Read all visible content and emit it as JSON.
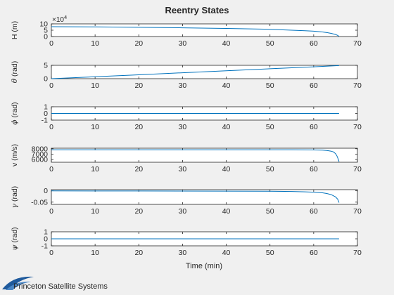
{
  "figure": {
    "title": "Reentry States",
    "xlabel": "Time (min)",
    "brand_text": "Princeton Satellite Systems"
  },
  "colors": {
    "background": "#f0f0f0",
    "axes_bg": "#ffffff",
    "line": "#0072bd",
    "axis": "#262626",
    "logo": "#1f5a9c"
  },
  "chart_data": [
    {
      "type": "line",
      "ylabel": "H (m)",
      "ylabel_symbol": "",
      "ylabel_rest": "H (m)",
      "exponent_label": "×10",
      "exponent_power": "4",
      "xlim": [
        0,
        70
      ],
      "ylim": [
        0,
        10
      ],
      "xticks": [
        "0",
        "10",
        "20",
        "30",
        "40",
        "50",
        "60",
        "70"
      ],
      "yticks": [
        {
          "v": 0,
          "t": "0"
        },
        {
          "v": 5,
          "t": "5"
        },
        {
          "v": 10,
          "t": "10"
        }
      ],
      "grid": false,
      "series": [
        {
          "x": [
            0,
            10,
            20,
            30,
            40,
            50,
            55,
            58,
            60,
            62,
            63,
            64,
            65,
            65.5,
            65.8
          ],
          "y": [
            7.8,
            7.6,
            7.3,
            6.9,
            6.4,
            5.7,
            5.0,
            4.6,
            4.2,
            3.6,
            3.1,
            2.5,
            1.6,
            0.9,
            0.1
          ]
        }
      ]
    },
    {
      "type": "line",
      "ylabel": "θ (rad)",
      "ylabel_symbol": "θ",
      "ylabel_rest": " (rad)",
      "xlim": [
        0,
        70
      ],
      "ylim": [
        0,
        5
      ],
      "xticks": [
        "0",
        "10",
        "20",
        "30",
        "40",
        "50",
        "60",
        "70"
      ],
      "yticks": [
        {
          "v": 0,
          "t": "0"
        },
        {
          "v": 5,
          "t": "5"
        }
      ],
      "grid": false,
      "series": [
        {
          "x": [
            0,
            10,
            20,
            30,
            40,
            50,
            60,
            65.8
          ],
          "y": [
            0,
            0.7,
            1.45,
            2.2,
            2.95,
            3.7,
            4.45,
            4.9
          ]
        }
      ]
    },
    {
      "type": "line",
      "ylabel": "ϕ (rad)",
      "ylabel_symbol": "ϕ",
      "ylabel_rest": " (rad)",
      "xlim": [
        0,
        70
      ],
      "ylim": [
        -1,
        1
      ],
      "xticks": [
        "0",
        "10",
        "20",
        "30",
        "40",
        "50",
        "60",
        "70"
      ],
      "yticks": [
        {
          "v": -1,
          "t": "-1"
        },
        {
          "v": 0,
          "t": "0"
        },
        {
          "v": 1,
          "t": "1"
        }
      ],
      "grid": false,
      "series": [
        {
          "x": [
            0,
            65.8
          ],
          "y": [
            0,
            0
          ]
        }
      ]
    },
    {
      "type": "line",
      "ylabel": "v (m/s)",
      "ylabel_symbol": "",
      "ylabel_rest": "v (m/s)",
      "xlim": [
        0,
        70
      ],
      "ylim": [
        5500,
        8100
      ],
      "xticks": [
        "0",
        "10",
        "20",
        "30",
        "40",
        "50",
        "60",
        "70"
      ],
      "yticks": [
        {
          "v": 6000,
          "t": "6000"
        },
        {
          "v": 7000,
          "t": "7000"
        },
        {
          "v": 8000,
          "t": "8000"
        }
      ],
      "grid": false,
      "series": [
        {
          "x": [
            0,
            20,
            40,
            55,
            60,
            62,
            63,
            64,
            64.5,
            65,
            65.3,
            65.6,
            65.8
          ],
          "y": [
            7800,
            7800,
            7798,
            7795,
            7780,
            7740,
            7680,
            7550,
            7420,
            7100,
            6700,
            6100,
            5600
          ]
        }
      ]
    },
    {
      "type": "line",
      "ylabel": "γ (rad)",
      "ylabel_symbol": "γ",
      "ylabel_rest": " (rad)",
      "xlim": [
        0,
        70
      ],
      "ylim": [
        -0.06,
        0.005
      ],
      "xticks": [
        "0",
        "10",
        "20",
        "30",
        "40",
        "50",
        "60",
        "70"
      ],
      "yticks": [
        {
          "v": -0.05,
          "t": "-0.05"
        },
        {
          "v": 0,
          "t": "0"
        }
      ],
      "grid": false,
      "series": [
        {
          "x": [
            0,
            20,
            40,
            50,
            55,
            58,
            60,
            62,
            63,
            64,
            65,
            65.5,
            65.8
          ],
          "y": [
            -0.0005,
            -0.001,
            -0.0015,
            -0.0022,
            -0.003,
            -0.0045,
            -0.006,
            -0.009,
            -0.012,
            -0.017,
            -0.027,
            -0.037,
            -0.052
          ]
        }
      ]
    },
    {
      "type": "line",
      "ylabel": "ψ (rad)",
      "ylabel_symbol": "ψ",
      "ylabel_rest": " (rad)",
      "xlim": [
        0,
        70
      ],
      "ylim": [
        -1,
        1
      ],
      "xticks": [
        "0",
        "10",
        "20",
        "30",
        "40",
        "50",
        "60",
        "70"
      ],
      "yticks": [
        {
          "v": -1,
          "t": "-1"
        },
        {
          "v": 0,
          "t": "0"
        },
        {
          "v": 1,
          "t": "1"
        }
      ],
      "grid": false,
      "series": [
        {
          "x": [
            0,
            65.8
          ],
          "y": [
            0,
            0
          ]
        }
      ]
    }
  ]
}
